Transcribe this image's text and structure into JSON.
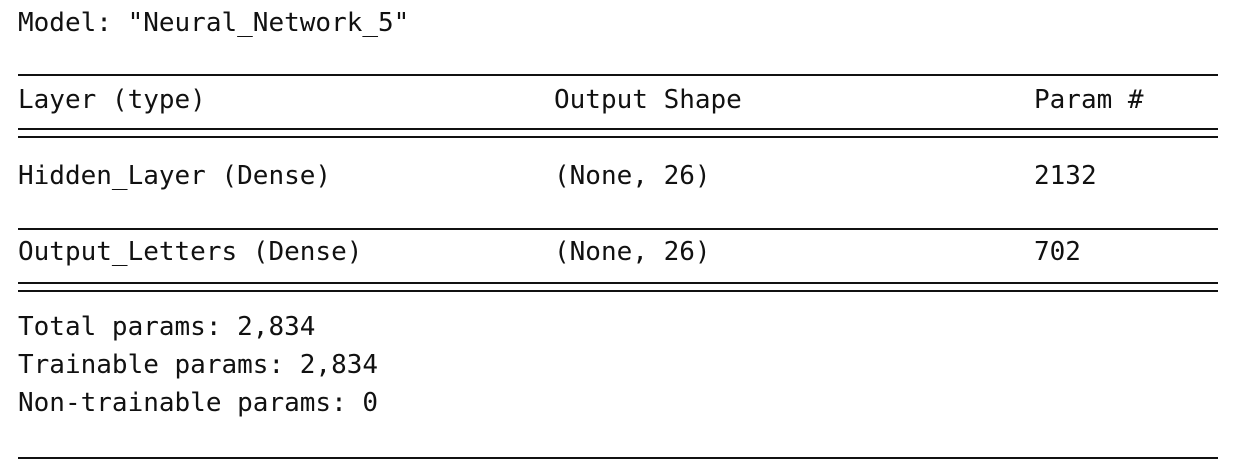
{
  "model": {
    "title": "Model: \"Neural_Network_5\""
  },
  "table": {
    "headers": {
      "layer": "Layer (type)",
      "output_shape": "Output Shape",
      "params": "Param #"
    },
    "rows": [
      {
        "layer": "Hidden_Layer (Dense)",
        "output_shape": "(None, 26)",
        "params": "2132"
      },
      {
        "layer": "Output_Letters (Dense)",
        "output_shape": "(None, 26)",
        "params": "702"
      }
    ]
  },
  "totals": {
    "total": "Total params: 2,834",
    "trainable": "Trainable params: 2,834",
    "non_trainable": "Non-trainable params: 0"
  }
}
